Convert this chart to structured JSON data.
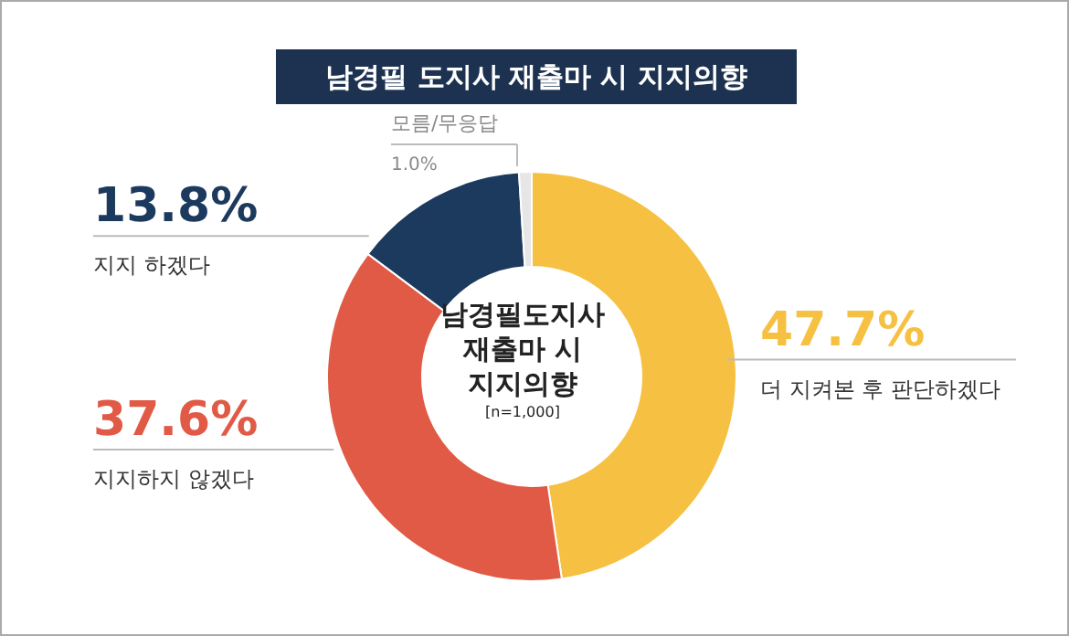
{
  "chart_data": {
    "type": "donut",
    "title": "남경필 도지사 재출마 시 지지의향",
    "categories": [
      "더 지켜본 후 판단하겠다",
      "지지하지 않겠다",
      "지지 하겠다",
      "모름/무응답"
    ],
    "values": [
      47.7,
      37.6,
      13.8,
      1.0
    ],
    "colors": [
      "#f6c142",
      "#e15a45",
      "#1c3a5e",
      "#e6e6e6"
    ],
    "value_labels": [
      "47.7%",
      "37.6%",
      "13.8%",
      "1.0%"
    ],
    "annotations": [
      "남경필도지사\n재출마 시\n지지의향",
      "[n=1,000]"
    ]
  }
}
